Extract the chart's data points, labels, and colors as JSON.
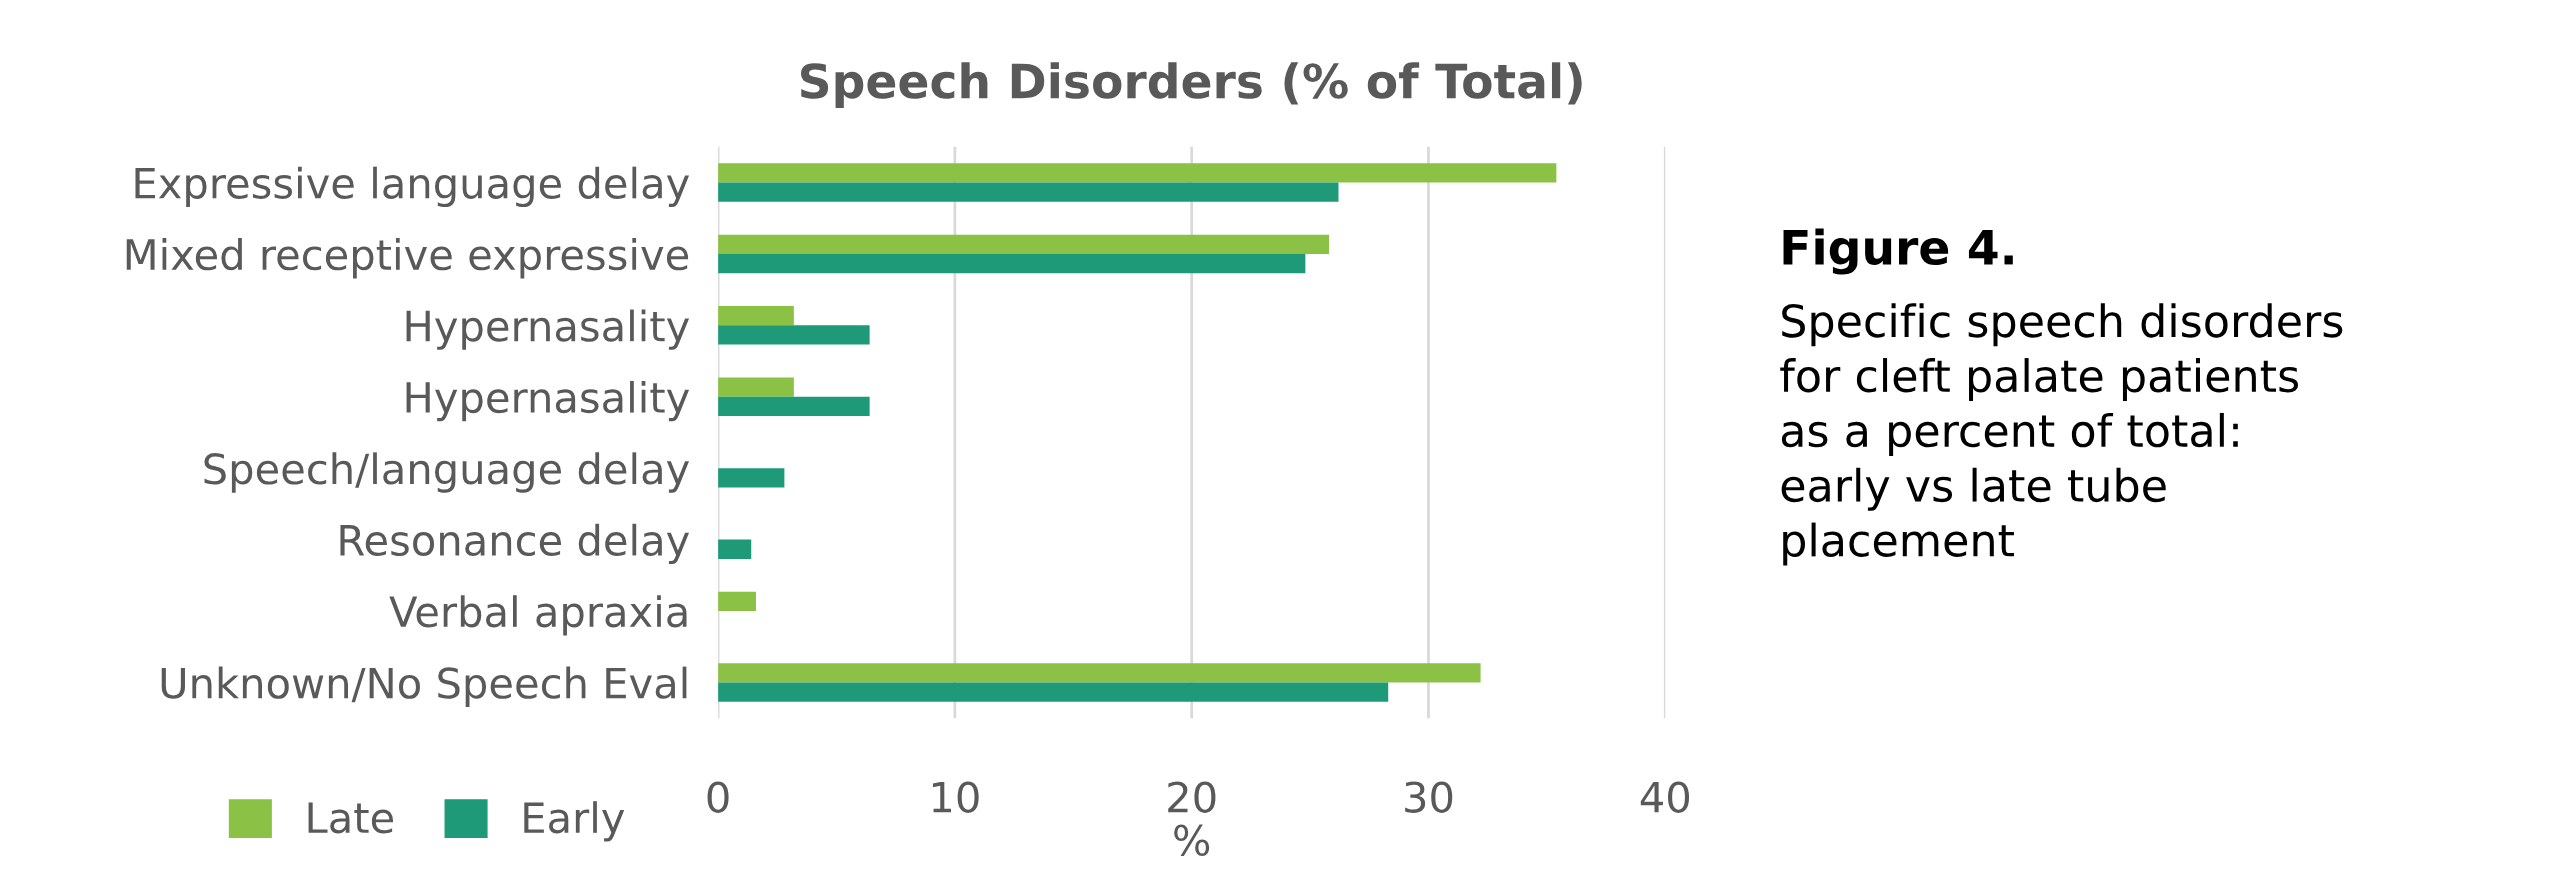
{
  "chart_data": {
    "type": "bar",
    "orientation": "horizontal",
    "title": "Speech Disorders (% of Total)",
    "xlabel": "%",
    "categories": [
      "Expressive language delay",
      "Mixed receptive expressive",
      "Hypernasality",
      "Hypernasality",
      "Speech/language delay",
      "Resonance delay",
      "Verbal apraxia",
      "Unknown/No Speech Eval"
    ],
    "series": [
      {
        "name": "Late",
        "color": "#8bc145",
        "values": [
          35.4,
          25.8,
          3.2,
          3.2,
          null,
          null,
          1.6,
          32.2
        ]
      },
      {
        "name": "Early",
        "color": "#1e9a78",
        "values": [
          26.2,
          24.8,
          6.4,
          6.4,
          2.8,
          1.4,
          null,
          28.3
        ]
      }
    ],
    "xlim": [
      0,
      40
    ],
    "xticks": [
      0,
      10,
      20,
      30,
      40
    ],
    "grid": "x",
    "legend": "bottom left",
    "annotations": [
      "Figure 4.",
      "Specific speech disorders\nfor cleft palate patients\nas a percent of total:\nearly vs late tube\nplacement"
    ]
  }
}
